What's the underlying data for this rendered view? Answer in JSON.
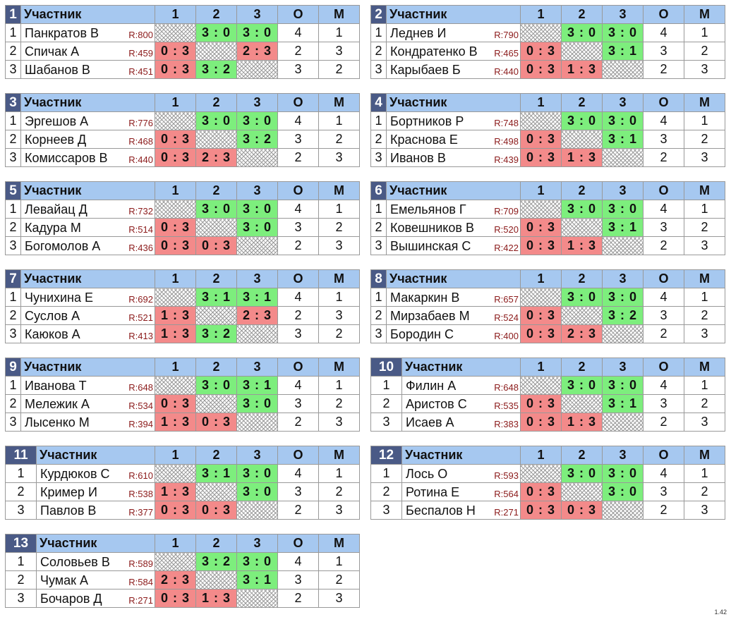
{
  "header": {
    "participant": "Участник",
    "col1": "1",
    "col2": "2",
    "col3": "3",
    "points": "О",
    "place": "М"
  },
  "version": "1.42",
  "groups": [
    {
      "num": "1",
      "rows": [
        {
          "pos": "1",
          "name": "Панкратов В",
          "rating": "R:800",
          "cells": [
            "",
            "3 : 0",
            "3 : 0"
          ],
          "points": "4",
          "place": "1"
        },
        {
          "pos": "2",
          "name": "Спичак А",
          "rating": "R:459",
          "cells": [
            "0 : 3",
            "",
            "2 : 3"
          ],
          "points": "2",
          "place": "3"
        },
        {
          "pos": "3",
          "name": "Шабанов В",
          "rating": "R:451",
          "cells": [
            "0 : 3",
            "3 : 2",
            ""
          ],
          "points": "3",
          "place": "2"
        }
      ]
    },
    {
      "num": "2",
      "rows": [
        {
          "pos": "1",
          "name": "Леднев И",
          "rating": "R:790",
          "cells": [
            "",
            "3 : 0",
            "3 : 0"
          ],
          "points": "4",
          "place": "1"
        },
        {
          "pos": "2",
          "name": "Кондратенко В",
          "rating": "R:465",
          "cells": [
            "0 : 3",
            "",
            "3 : 1"
          ],
          "points": "3",
          "place": "2"
        },
        {
          "pos": "3",
          "name": "Карыбаев Б",
          "rating": "R:440",
          "cells": [
            "0 : 3",
            "1 : 3",
            ""
          ],
          "points": "2",
          "place": "3"
        }
      ]
    },
    {
      "num": "3",
      "rows": [
        {
          "pos": "1",
          "name": "Эргешов А",
          "rating": "R:776",
          "cells": [
            "",
            "3 : 0",
            "3 : 0"
          ],
          "points": "4",
          "place": "1"
        },
        {
          "pos": "2",
          "name": "Корнеев Д",
          "rating": "R:468",
          "cells": [
            "0 : 3",
            "",
            "3 : 2"
          ],
          "points": "3",
          "place": "2"
        },
        {
          "pos": "3",
          "name": "Комиссаров В",
          "rating": "R:440",
          "cells": [
            "0 : 3",
            "2 : 3",
            ""
          ],
          "points": "2",
          "place": "3"
        }
      ]
    },
    {
      "num": "4",
      "rows": [
        {
          "pos": "1",
          "name": "Бортников Р",
          "rating": "R:748",
          "cells": [
            "",
            "3 : 0",
            "3 : 0"
          ],
          "points": "4",
          "place": "1"
        },
        {
          "pos": "2",
          "name": "Краснова Е",
          "rating": "R:498",
          "cells": [
            "0 : 3",
            "",
            "3 : 1"
          ],
          "points": "3",
          "place": "2"
        },
        {
          "pos": "3",
          "name": "Иванов В",
          "rating": "R:439",
          "cells": [
            "0 : 3",
            "1 : 3",
            ""
          ],
          "points": "2",
          "place": "3"
        }
      ]
    },
    {
      "num": "5",
      "rows": [
        {
          "pos": "1",
          "name": "Левайац Д",
          "rating": "R:732",
          "cells": [
            "",
            "3 : 0",
            "3 : 0"
          ],
          "points": "4",
          "place": "1"
        },
        {
          "pos": "2",
          "name": "Кадура М",
          "rating": "R:514",
          "cells": [
            "0 : 3",
            "",
            "3 : 0"
          ],
          "points": "3",
          "place": "2"
        },
        {
          "pos": "3",
          "name": "Богомолов А",
          "rating": "R:436",
          "cells": [
            "0 : 3",
            "0 : 3",
            ""
          ],
          "points": "2",
          "place": "3"
        }
      ]
    },
    {
      "num": "6",
      "rows": [
        {
          "pos": "1",
          "name": "Емельянов Г",
          "rating": "R:709",
          "cells": [
            "",
            "3 : 0",
            "3 : 0"
          ],
          "points": "4",
          "place": "1"
        },
        {
          "pos": "2",
          "name": "Ковешников В",
          "rating": "R:520",
          "cells": [
            "0 : 3",
            "",
            "3 : 1"
          ],
          "points": "3",
          "place": "2"
        },
        {
          "pos": "3",
          "name": "Вышинская С",
          "rating": "R:422",
          "cells": [
            "0 : 3",
            "1 : 3",
            ""
          ],
          "points": "2",
          "place": "3"
        }
      ]
    },
    {
      "num": "7",
      "rows": [
        {
          "pos": "1",
          "name": "Чунихина Е",
          "rating": "R:692",
          "cells": [
            "",
            "3 : 1",
            "3 : 1"
          ],
          "points": "4",
          "place": "1"
        },
        {
          "pos": "2",
          "name": "Суслов А",
          "rating": "R:521",
          "cells": [
            "1 : 3",
            "",
            "2 : 3"
          ],
          "points": "2",
          "place": "3"
        },
        {
          "pos": "3",
          "name": "Каюков А",
          "rating": "R:413",
          "cells": [
            "1 : 3",
            "3 : 2",
            ""
          ],
          "points": "3",
          "place": "2"
        }
      ]
    },
    {
      "num": "8",
      "rows": [
        {
          "pos": "1",
          "name": "Макаркин В",
          "rating": "R:657",
          "cells": [
            "",
            "3 : 0",
            "3 : 0"
          ],
          "points": "4",
          "place": "1"
        },
        {
          "pos": "2",
          "name": "Мирзабаев М",
          "rating": "R:524",
          "cells": [
            "0 : 3",
            "",
            "3 : 2"
          ],
          "points": "3",
          "place": "2"
        },
        {
          "pos": "3",
          "name": "Бородин С",
          "rating": "R:400",
          "cells": [
            "0 : 3",
            "2 : 3",
            ""
          ],
          "points": "2",
          "place": "3"
        }
      ]
    },
    {
      "num": "9",
      "rows": [
        {
          "pos": "1",
          "name": "Иванова Т",
          "rating": "R:648",
          "cells": [
            "",
            "3 : 0",
            "3 : 1"
          ],
          "points": "4",
          "place": "1"
        },
        {
          "pos": "2",
          "name": "Мележик А",
          "rating": "R:534",
          "cells": [
            "0 : 3",
            "",
            "3 : 0"
          ],
          "points": "3",
          "place": "2"
        },
        {
          "pos": "3",
          "name": "Лысенко М",
          "rating": "R:394",
          "cells": [
            "1 : 3",
            "0 : 3",
            ""
          ],
          "points": "2",
          "place": "3"
        }
      ]
    },
    {
      "num": "10",
      "rows": [
        {
          "pos": "1",
          "name": "Филин А",
          "rating": "R:648",
          "cells": [
            "",
            "3 : 0",
            "3 : 0"
          ],
          "points": "4",
          "place": "1"
        },
        {
          "pos": "2",
          "name": "Аристов С",
          "rating": "R:535",
          "cells": [
            "0 : 3",
            "",
            "3 : 1"
          ],
          "points": "3",
          "place": "2"
        },
        {
          "pos": "3",
          "name": "Исаев А",
          "rating": "R:383",
          "cells": [
            "0 : 3",
            "1 : 3",
            ""
          ],
          "points": "2",
          "place": "3"
        }
      ]
    },
    {
      "num": "11",
      "rows": [
        {
          "pos": "1",
          "name": "Курдюков С",
          "rating": "R:610",
          "cells": [
            "",
            "3 : 1",
            "3 : 0"
          ],
          "points": "4",
          "place": "1"
        },
        {
          "pos": "2",
          "name": "Кример И",
          "rating": "R:538",
          "cells": [
            "1 : 3",
            "",
            "3 : 0"
          ],
          "points": "3",
          "place": "2"
        },
        {
          "pos": "3",
          "name": "Павлов В",
          "rating": "R:377",
          "cells": [
            "0 : 3",
            "0 : 3",
            ""
          ],
          "points": "2",
          "place": "3"
        }
      ]
    },
    {
      "num": "12",
      "rows": [
        {
          "pos": "1",
          "name": "Лось О",
          "rating": "R:593",
          "cells": [
            "",
            "3 : 0",
            "3 : 0"
          ],
          "points": "4",
          "place": "1"
        },
        {
          "pos": "2",
          "name": "Ротина Е",
          "rating": "R:564",
          "cells": [
            "0 : 3",
            "",
            "3 : 0"
          ],
          "points": "3",
          "place": "2"
        },
        {
          "pos": "3",
          "name": "Беспалов Н",
          "rating": "R:271",
          "cells": [
            "0 : 3",
            "0 : 3",
            ""
          ],
          "points": "2",
          "place": "3"
        }
      ]
    },
    {
      "num": "13",
      "rows": [
        {
          "pos": "1",
          "name": "Соловьев В",
          "rating": "R:589",
          "cells": [
            "",
            "3 : 2",
            "3 : 0"
          ],
          "points": "4",
          "place": "1"
        },
        {
          "pos": "2",
          "name": "Чумак А",
          "rating": "R:584",
          "cells": [
            "2 : 3",
            "",
            "3 : 1"
          ],
          "points": "3",
          "place": "2"
        },
        {
          "pos": "3",
          "name": "Бочаров Д",
          "rating": "R:271",
          "cells": [
            "0 : 3",
            "1 : 3",
            ""
          ],
          "points": "2",
          "place": "3"
        }
      ]
    }
  ]
}
